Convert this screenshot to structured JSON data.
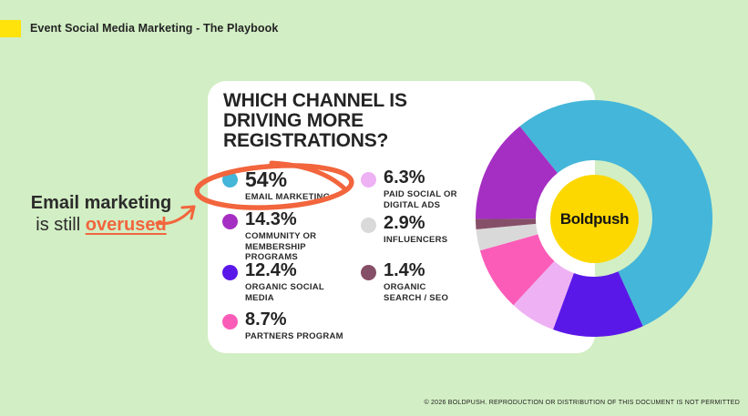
{
  "page": {
    "background": "#d2eec4",
    "accent_orange": "#f2653d"
  },
  "header": {
    "title": "Event Social Media Marketing - The Playbook",
    "accent_color": "#ffe30a"
  },
  "annotation": {
    "bold_lead": "Email marketing",
    "mid": "is still",
    "highlight": "overused",
    "color": "#f2653d"
  },
  "card": {
    "title": "WHICH CHANNEL IS DRIVING MORE REGISTRATIONS?"
  },
  "legend": {
    "items": [
      {
        "pct": "54%",
        "label": "EMAIL MARKETING",
        "color": "#44b6d9",
        "circled": true
      },
      {
        "pct": "14.3%",
        "label": "COMMUNITY OR MEMBERSHIP PROGRAMS",
        "color": "#a52fc2",
        "circled": false
      },
      {
        "pct": "12.4%",
        "label": "ORGANIC SOCIAL MEDIA",
        "color": "#5a18e8",
        "circled": false
      },
      {
        "pct": "8.7%",
        "label": "PARTNERS PROGRAM",
        "color": "#fb5cb8",
        "circled": false
      },
      {
        "pct": "6.3%",
        "label": "PAID SOCIAL OR DIGITAL ADS",
        "color": "#eeb1f4",
        "circled": false
      },
      {
        "pct": "2.9%",
        "label": "INFLUENCERS",
        "color": "#d9d9d9",
        "circled": false
      },
      {
        "pct": "1.4%",
        "label": "ORGANIC SEARCH / SEO",
        "color": "#864f68",
        "circled": false
      }
    ]
  },
  "chart_data": {
    "type": "pie",
    "donut": true,
    "title": "WHICH CHANNEL IS DRIVING MORE REGISTRATIONS?",
    "start_angle_deg": -38.8,
    "inner_radius_ratio": 0.495,
    "legend_position": "left",
    "slices": [
      {
        "name": "EMAIL MARKETING",
        "value": 54,
        "color": "#44b6d9"
      },
      {
        "name": "ORGANIC SOCIAL MEDIA",
        "value": 12.4,
        "color": "#5a18e8"
      },
      {
        "name": "PAID SOCIAL OR DIGITAL ADS",
        "value": 6.3,
        "color": "#eeb1f4"
      },
      {
        "name": "PARTNERS PROGRAM",
        "value": 8.7,
        "color": "#fb5cb8"
      },
      {
        "name": "INFLUENCERS",
        "value": 2.9,
        "color": "#d9d9d9"
      },
      {
        "name": "ORGANIC SEARCH / SEO",
        "value": 1.4,
        "color": "#864f68"
      },
      {
        "name": "COMMUNITY OR MEMBERSHIP PROGRAMS",
        "value": 14.3,
        "color": "#a52fc2"
      }
    ]
  },
  "logo": {
    "text": "Boldpush",
    "bg_color": "#fcd800"
  },
  "footer": {
    "text": "© 2026 BOLDPUSH. REPRODUCTION OR DISTRIBUTION OF THIS DOCUMENT IS NOT PERMITTED"
  }
}
